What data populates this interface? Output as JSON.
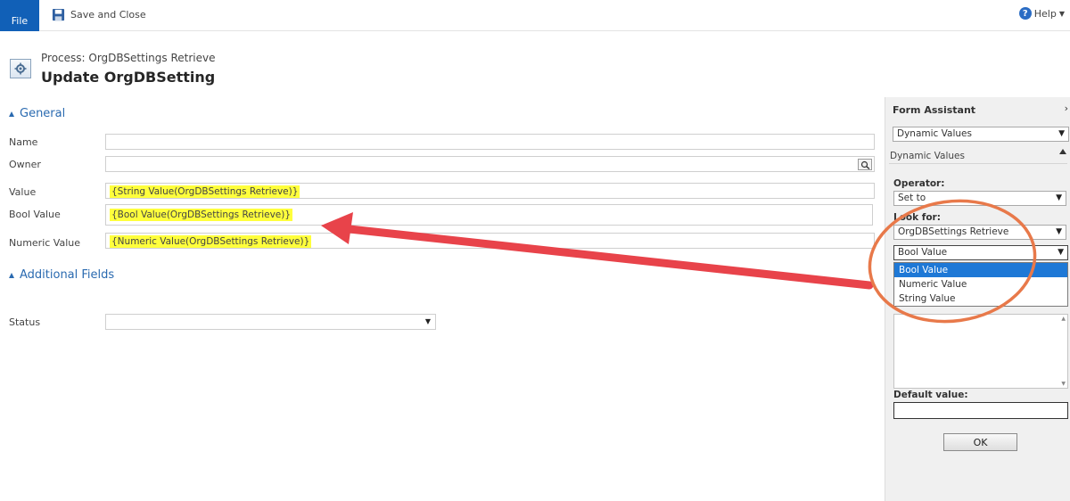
{
  "ribbon": {
    "file_label": "File",
    "save_close_label": "Save and Close",
    "help_label": "Help"
  },
  "header": {
    "process_label": "Process: OrgDBSettings Retrieve",
    "title": "Update OrgDBSetting"
  },
  "sections": {
    "general": "General",
    "additional": "Additional Fields"
  },
  "fields": {
    "name": {
      "label": "Name",
      "value": ""
    },
    "owner": {
      "label": "Owner",
      "value": ""
    },
    "value": {
      "label": "Value",
      "value": "{String Value(OrgDBSettings Retrieve)}"
    },
    "bool_value": {
      "label": "Bool Value",
      "value": "{Bool Value(OrgDBSettings Retrieve)}"
    },
    "numeric_value": {
      "label": "Numeric Value",
      "value": "{Numeric Value(OrgDBSettings Retrieve)}"
    },
    "status": {
      "label": "Status",
      "value": ""
    }
  },
  "assistant": {
    "title": "Form Assistant",
    "mode_select": "Dynamic Values",
    "subsection": "Dynamic Values",
    "operator_label": "Operator:",
    "operator_value": "Set to",
    "look_for_label": "Look for:",
    "look_for_value": "OrgDBSettings Retrieve",
    "attribute_value": "Bool Value",
    "attribute_options": [
      "Bool Value",
      "Numeric Value",
      "String Value"
    ],
    "default_label": "Default value:",
    "ok_label": "OK"
  },
  "colors": {
    "highlight": "#ffff3c",
    "file_blue": "#1160b7",
    "section_blue": "#2a6ab0",
    "annotation_red": "#e8434a",
    "annotation_circle": "#e8794a"
  }
}
